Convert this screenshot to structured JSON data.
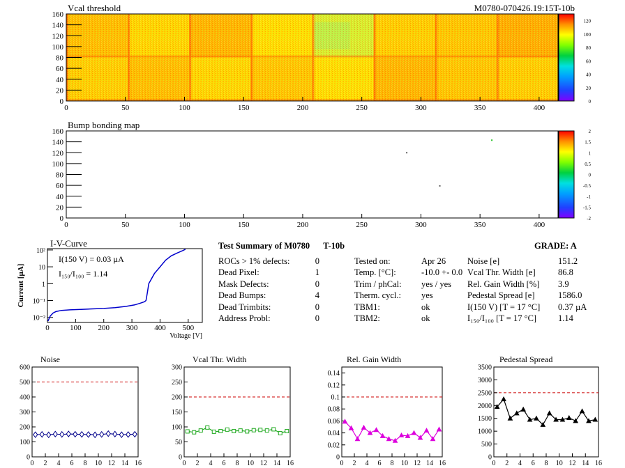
{
  "chart_data": [
    {
      "type": "heatmap",
      "title": "Vcal threshold",
      "module_id": "M0780-070426.19:15T-10b",
      "x_ticks": [
        0,
        50,
        100,
        150,
        200,
        250,
        300,
        350,
        400
      ],
      "y_ticks": [
        0,
        20,
        40,
        60,
        80,
        100,
        120,
        140,
        160
      ],
      "xlim": [
        0,
        416
      ],
      "ylim": [
        0,
        160
      ],
      "z_ticks": [
        0,
        20,
        40,
        60,
        80,
        100,
        120
      ],
      "zlim": [
        0,
        130
      ]
    },
    {
      "type": "heatmap",
      "title": "Bump bonding map",
      "x_ticks": [
        0,
        50,
        100,
        150,
        200,
        250,
        300,
        350,
        400
      ],
      "y_ticks": [
        0,
        20,
        40,
        60,
        80,
        100,
        120,
        140,
        160
      ],
      "xlim": [
        0,
        416
      ],
      "ylim": [
        0,
        160
      ],
      "z_ticks": [
        "2",
        "1.5",
        "1",
        "0.5",
        "0",
        "-0.5",
        "-1",
        "-1.5",
        "-2"
      ],
      "points": [
        [
          360,
          143
        ],
        [
          288,
          120
        ],
        [
          316,
          59
        ]
      ]
    },
    {
      "type": "line",
      "title": "I-V-Curve",
      "xlabel": "Voltage [V]",
      "ylabel": "Current [µA]",
      "x_ticks": [
        0,
        100,
        200,
        300,
        400,
        500
      ],
      "xlim": [
        0,
        550
      ],
      "y_log": true,
      "y_tick_labels": [
        "10⁻²",
        "10⁻¹",
        "1",
        "10",
        "10²"
      ],
      "ylim": [
        0.005,
        120
      ],
      "ann1": "I(150 V) = 0.03 µA",
      "ann2": "I₁₅₀/I₁₀₀ =  1.14",
      "x": [
        2,
        10,
        20,
        30,
        50,
        80,
        120,
        160,
        200,
        240,
        280,
        310,
        330,
        345,
        350,
        355,
        360,
        380,
        400,
        420,
        440,
        460,
        480,
        490
      ],
      "y": [
        0.006,
        0.012,
        0.018,
        0.022,
        0.026,
        0.028,
        0.03,
        0.032,
        0.034,
        0.038,
        0.045,
        0.055,
        0.07,
        0.085,
        0.1,
        0.3,
        1.0,
        4.0,
        10,
        25,
        45,
        65,
        90,
        110
      ]
    },
    {
      "type": "line",
      "title": "Noise",
      "color": "#00008b",
      "x_ticks": [
        0,
        2,
        4,
        6,
        8,
        10,
        12,
        14,
        16
      ],
      "y_ticks": [
        0,
        100,
        200,
        300,
        400,
        500,
        600
      ],
      "ylim": [
        0,
        600
      ],
      "limit": 500,
      "x": [
        0,
        1,
        2,
        3,
        4,
        5,
        6,
        7,
        8,
        9,
        10,
        11,
        12,
        13,
        14,
        15
      ],
      "y": [
        148,
        150,
        147,
        152,
        150,
        153,
        151,
        150,
        149,
        147,
        150,
        155,
        152,
        148,
        149,
        151
      ]
    },
    {
      "type": "line",
      "title": "Vcal Thr. Width",
      "color": "#22aa22",
      "x_ticks": [
        0,
        2,
        4,
        6,
        8,
        10,
        12,
        14,
        16
      ],
      "y_ticks": [
        0,
        50,
        100,
        150,
        200,
        250,
        300
      ],
      "ylim": [
        0,
        300
      ],
      "limit": 200,
      "x": [
        0,
        1,
        2,
        3,
        4,
        5,
        6,
        7,
        8,
        9,
        10,
        11,
        12,
        13,
        14,
        15
      ],
      "y": [
        85,
        82,
        88,
        98,
        84,
        86,
        91,
        86,
        88,
        85,
        89,
        90,
        88,
        92,
        79,
        86
      ]
    },
    {
      "type": "line",
      "title": "Rel. Gain Width",
      "color": "#dd00dd",
      "x_ticks": [
        0,
        2,
        4,
        6,
        8,
        10,
        12,
        14,
        16
      ],
      "y_ticks": [
        0,
        0.02,
        0.04,
        0.06,
        0.08,
        0.1,
        0.12,
        0.14
      ],
      "ylim": [
        0,
        0.15
      ],
      "limit": 0.1,
      "x": [
        0,
        1,
        2,
        3,
        4,
        5,
        6,
        7,
        8,
        9,
        10,
        11,
        12,
        13,
        14,
        15
      ],
      "y": [
        0.059,
        0.048,
        0.03,
        0.049,
        0.04,
        0.045,
        0.035,
        0.03,
        0.027,
        0.036,
        0.035,
        0.04,
        0.032,
        0.044,
        0.03,
        0.046
      ]
    },
    {
      "type": "line",
      "title": "Pedestal Spread",
      "color": "#000000",
      "x_ticks": [
        0,
        2,
        4,
        6,
        8,
        10,
        12,
        14,
        16
      ],
      "y_ticks": [
        0,
        500,
        1000,
        1500,
        2000,
        2500,
        3000,
        3500
      ],
      "ylim": [
        0,
        3500
      ],
      "limit": 2500,
      "x": [
        0,
        1,
        2,
        3,
        4,
        5,
        6,
        7,
        8,
        9,
        10,
        11,
        12,
        13,
        14,
        15
      ],
      "y": [
        1950,
        2250,
        1500,
        1700,
        1850,
        1450,
        1500,
        1250,
        1700,
        1450,
        1450,
        1520,
        1400,
        1780,
        1400,
        1450
      ]
    }
  ],
  "summary": {
    "title": "Test Summary of M0780",
    "id": "T-10b",
    "grade": "GRADE:  A",
    "col1": [
      {
        "label": "ROCs > 1% defects:",
        "value": "0"
      },
      {
        "label": "Dead Pixel:",
        "value": "1"
      },
      {
        "label": "Mask Defects:",
        "value": "0"
      },
      {
        "label": "Dead Bumps:",
        "value": "4"
      },
      {
        "label": "Dead Trimbits:",
        "value": "0"
      },
      {
        "label": "Address Probl:",
        "value": "0"
      }
    ],
    "col2": [
      {
        "label": "Tested on:",
        "value": "Apr 26"
      },
      {
        "label": "Temp. [°C]:",
        "value": "-10.0 +- 0.0"
      },
      {
        "label": "Trim / phCal:",
        "value": "yes / yes"
      },
      {
        "label": "Therm. cycl.:",
        "value": "yes"
      },
      {
        "label": "TBM1:",
        "value": "ok"
      },
      {
        "label": "TBM2:",
        "value": "ok"
      }
    ],
    "col3": [
      {
        "label": "Noise [e]",
        "value": "151.2"
      },
      {
        "label": "Vcal Thr. Width [e]",
        "value": "86.8"
      },
      {
        "label": "Rel. Gain Width [%]",
        "value": "3.9"
      },
      {
        "label": "Pedestal Spread [e]",
        "value": "1586.0"
      },
      {
        "label": "I(150 V) [T = 17 °C]",
        "value": "0.37 µA"
      },
      {
        "label": "I₁₅₀/I₁₀₀  [T = 17 °C]",
        "value": "1.14"
      }
    ]
  }
}
